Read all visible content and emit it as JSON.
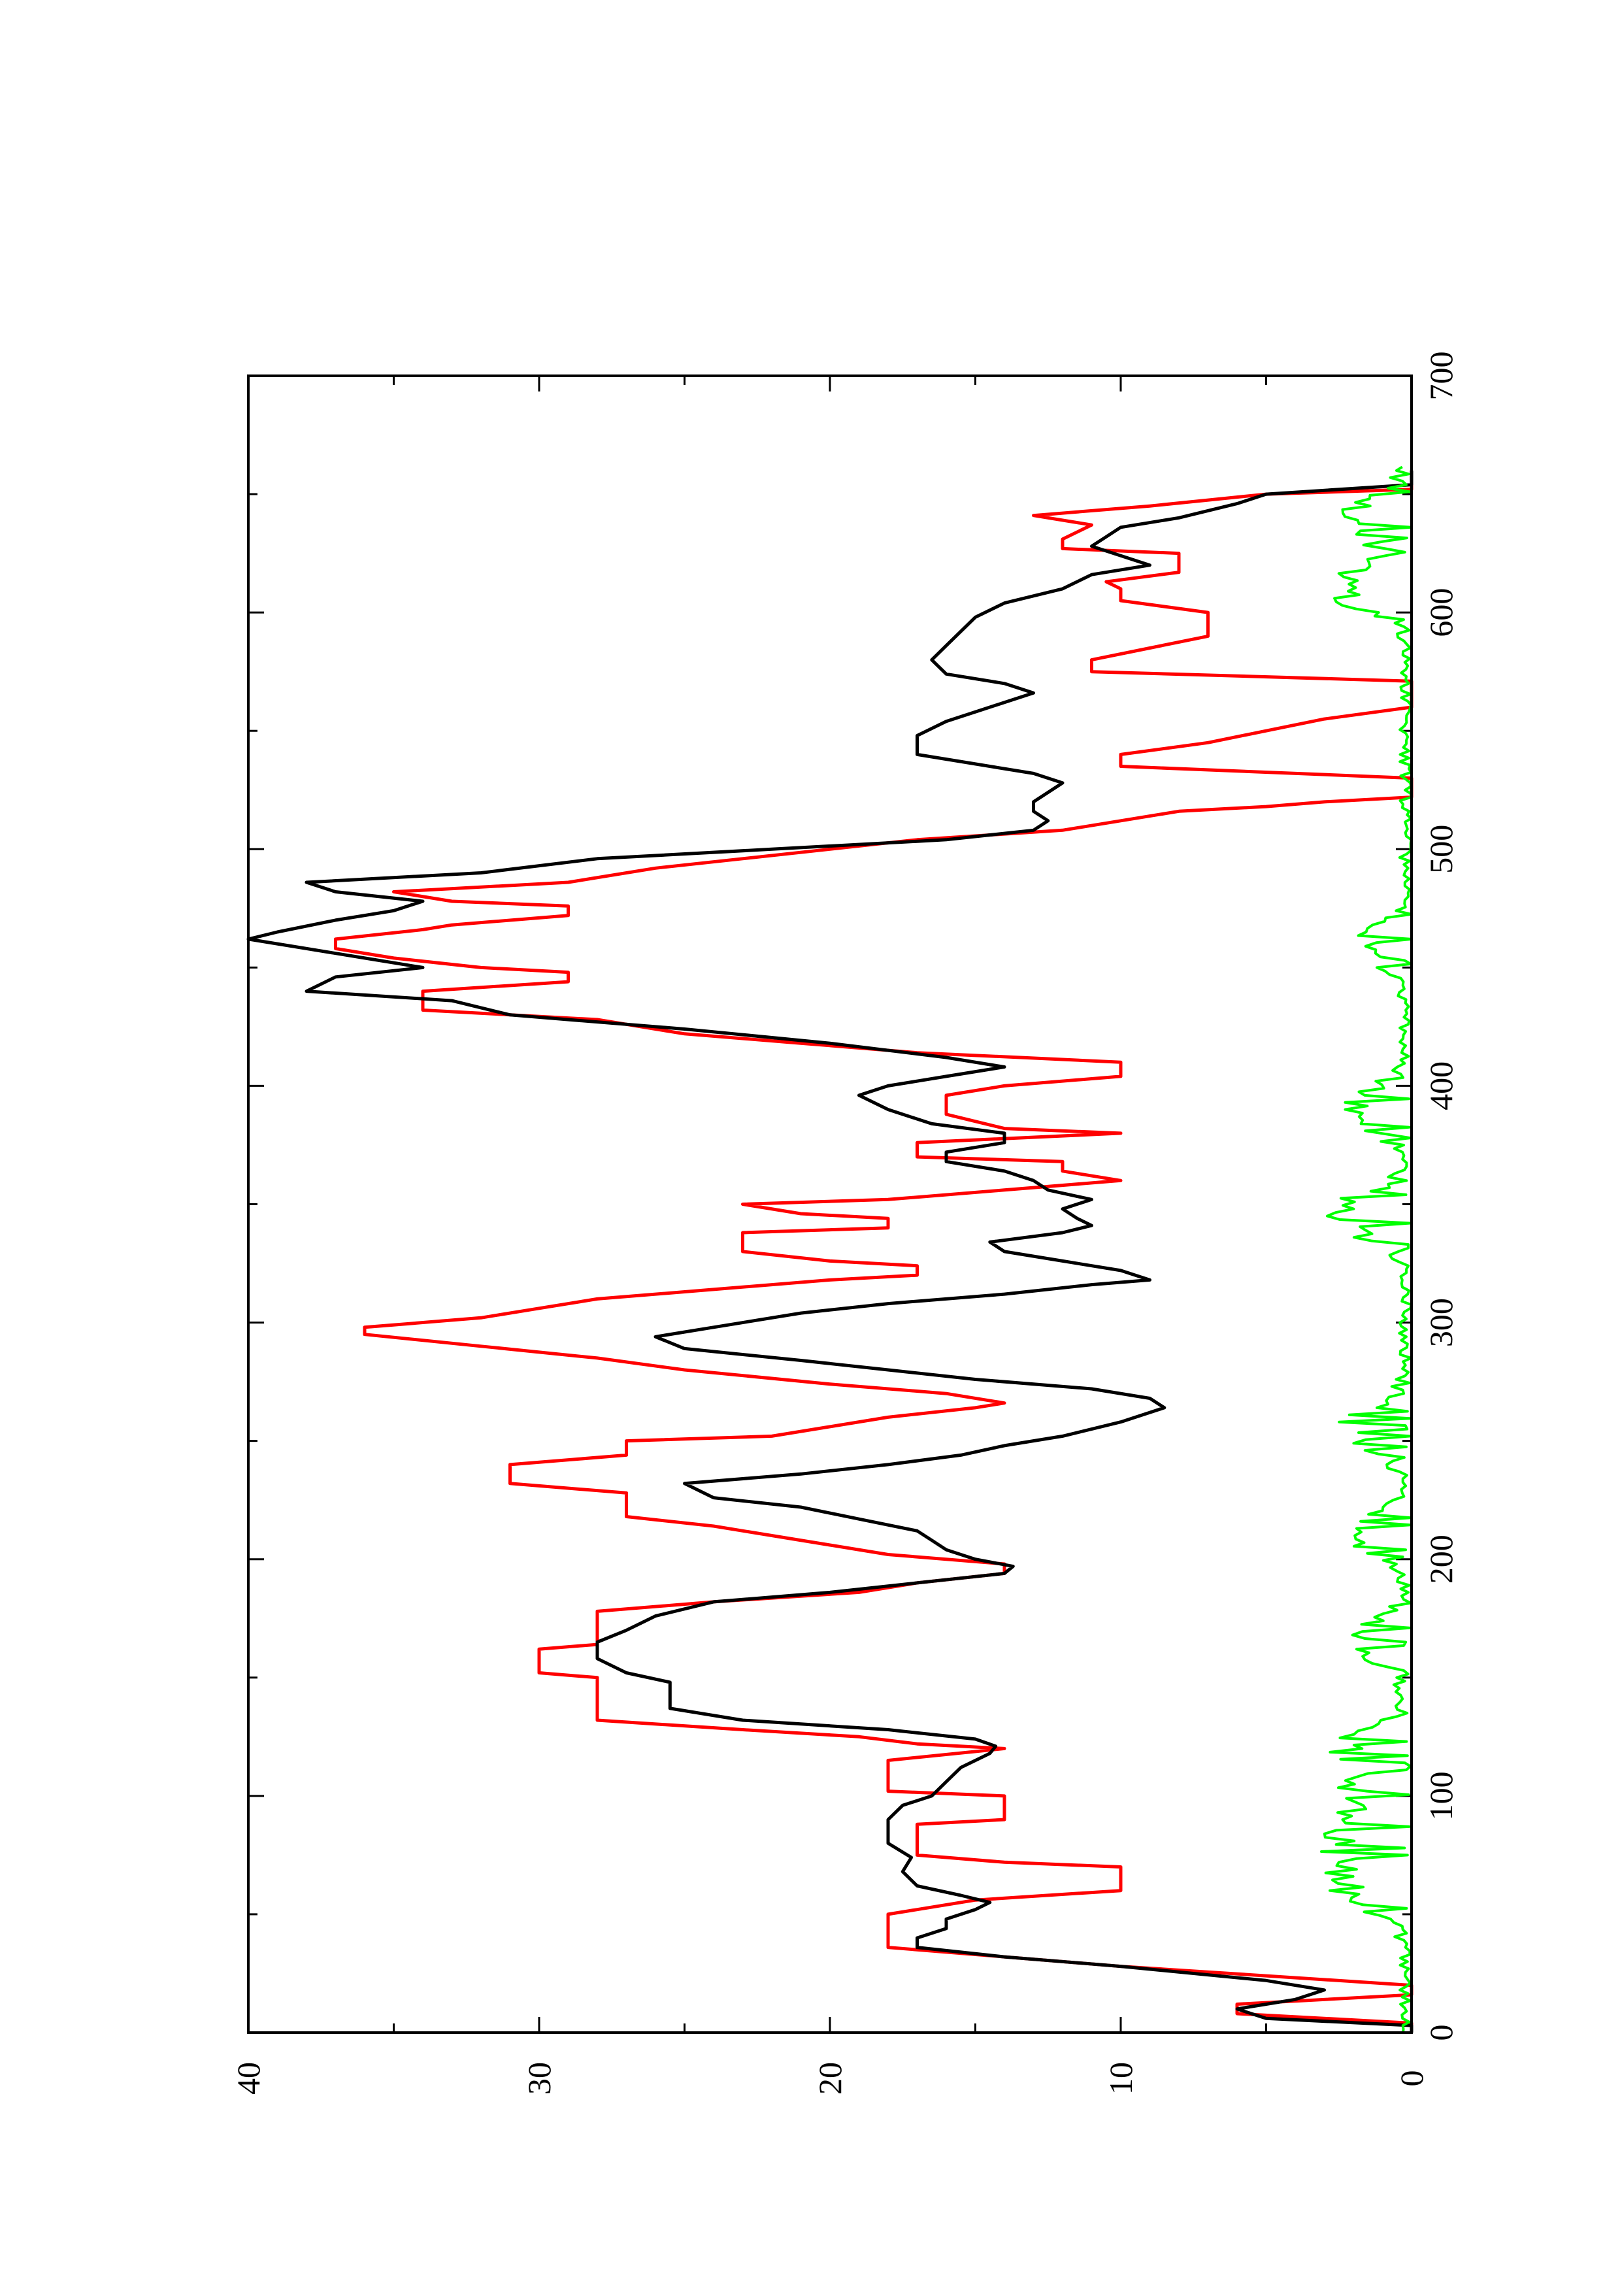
{
  "chart_data": {
    "type": "line",
    "title": "",
    "xlabel": "",
    "ylabel": "",
    "orientation": "rotated 90 degrees counter-clockwise (page landscape plot)",
    "xlim": [
      0,
      700
    ],
    "ylim": [
      0,
      40
    ],
    "x_ticks": [
      0,
      100,
      200,
      300,
      400,
      500,
      600,
      700
    ],
    "x_tick_labels": [
      "0",
      "100",
      "200",
      "300",
      "400",
      "500",
      "600",
      "700"
    ],
    "x_minor_ticks": [
      50,
      150,
      250,
      350,
      450,
      550,
      650
    ],
    "y_ticks": [
      0,
      10,
      20,
      30,
      40
    ],
    "y_tick_labels": [
      "0",
      "10",
      "20",
      "30",
      "40"
    ],
    "y_minor_ticks": [
      5,
      15,
      25,
      35
    ],
    "grid": false,
    "legend": "none",
    "series": [
      {
        "color": "#ff0000",
        "style": "step",
        "points": [
          [
            0,
            0
          ],
          [
            4,
            0
          ],
          [
            8,
            6
          ],
          [
            12,
            6
          ],
          [
            16,
            0
          ],
          [
            20,
            0
          ],
          [
            24,
            5
          ],
          [
            28,
            10
          ],
          [
            32,
            14
          ],
          [
            36,
            18
          ],
          [
            50,
            18
          ],
          [
            56,
            15
          ],
          [
            60,
            10
          ],
          [
            70,
            10
          ],
          [
            72,
            14
          ],
          [
            75,
            17
          ],
          [
            88,
            17
          ],
          [
            90,
            14
          ],
          [
            100,
            14
          ],
          [
            102,
            18
          ],
          [
            115,
            18
          ],
          [
            120,
            14
          ],
          [
            122,
            17
          ],
          [
            125,
            19
          ],
          [
            128,
            23
          ],
          [
            132,
            28
          ],
          [
            150,
            28
          ],
          [
            152,
            30
          ],
          [
            162,
            30
          ],
          [
            164,
            28
          ],
          [
            178,
            28
          ],
          [
            182,
            24
          ],
          [
            186,
            19
          ],
          [
            190,
            17
          ],
          [
            194,
            14
          ],
          [
            198,
            14
          ],
          [
            202,
            18
          ],
          [
            206,
            20
          ],
          [
            210,
            22
          ],
          [
            214,
            24
          ],
          [
            218,
            27
          ],
          [
            228,
            27
          ],
          [
            232,
            31
          ],
          [
            240,
            31
          ],
          [
            244,
            27
          ],
          [
            250,
            27
          ],
          [
            252,
            22
          ],
          [
            256,
            20
          ],
          [
            260,
            18
          ],
          [
            264,
            15
          ],
          [
            266,
            14
          ],
          [
            270,
            16
          ],
          [
            274,
            20
          ],
          [
            280,
            25
          ],
          [
            285,
            28
          ],
          [
            290,
            32
          ],
          [
            295,
            36
          ],
          [
            298,
            36
          ],
          [
            302,
            32
          ],
          [
            306,
            30
          ],
          [
            310,
            28
          ],
          [
            314,
            24
          ],
          [
            318,
            20
          ],
          [
            320,
            17
          ],
          [
            324,
            17
          ],
          [
            326,
            20
          ],
          [
            330,
            23
          ],
          [
            338,
            23
          ],
          [
            340,
            18
          ],
          [
            344,
            18
          ],
          [
            346,
            21
          ],
          [
            350,
            23
          ],
          [
            352,
            18
          ],
          [
            356,
            14
          ],
          [
            360,
            10
          ],
          [
            364,
            12
          ],
          [
            368,
            12
          ],
          [
            370,
            17
          ],
          [
            376,
            17
          ],
          [
            380,
            10
          ],
          [
            382,
            14
          ],
          [
            388,
            16
          ],
          [
            396,
            16
          ],
          [
            400,
            14
          ],
          [
            404,
            10
          ],
          [
            410,
            10
          ],
          [
            414,
            17
          ],
          [
            418,
            21
          ],
          [
            422,
            25
          ],
          [
            428,
            28
          ],
          [
            432,
            34
          ],
          [
            440,
            34
          ],
          [
            444,
            29
          ],
          [
            448,
            29
          ],
          [
            450,
            32
          ],
          [
            454,
            35
          ],
          [
            458,
            37
          ],
          [
            462,
            37
          ],
          [
            466,
            34
          ],
          [
            468,
            33
          ],
          [
            472,
            29
          ],
          [
            476,
            29
          ],
          [
            478,
            33
          ],
          [
            482,
            35
          ],
          [
            486,
            29
          ],
          [
            492,
            26
          ],
          [
            496,
            23
          ],
          [
            500,
            20
          ],
          [
            504,
            17
          ],
          [
            508,
            12
          ],
          [
            512,
            10
          ],
          [
            516,
            8
          ],
          [
            518,
            5
          ],
          [
            520,
            3
          ],
          [
            522,
            0
          ],
          [
            530,
            0
          ],
          [
            535,
            10
          ],
          [
            540,
            10
          ],
          [
            545,
            7
          ],
          [
            550,
            5
          ],
          [
            555,
            3
          ],
          [
            560,
            0
          ],
          [
            571,
            0
          ],
          [
            575,
            11
          ],
          [
            580,
            11
          ],
          [
            585,
            9
          ],
          [
            590,
            7
          ],
          [
            600,
            7
          ],
          [
            605,
            10
          ],
          [
            610,
            10
          ],
          [
            613,
            10.5
          ],
          [
            617,
            8
          ],
          [
            625,
            8
          ],
          [
            627,
            12
          ],
          [
            631,
            12
          ],
          [
            637,
            11
          ],
          [
            641,
            13
          ],
          [
            645,
            9
          ],
          [
            650,
            5
          ],
          [
            652,
            0
          ],
          [
            660,
            0
          ]
        ]
      },
      {
        "color": "#000000",
        "style": "line",
        "points": [
          [
            0,
            0
          ],
          [
            3,
            0
          ],
          [
            6,
            5
          ],
          [
            10,
            6
          ],
          [
            14,
            4
          ],
          [
            18,
            3
          ],
          [
            22,
            5
          ],
          [
            28,
            10
          ],
          [
            32,
            14
          ],
          [
            36,
            17
          ],
          [
            40,
            17
          ],
          [
            44,
            16
          ],
          [
            48,
            16
          ],
          [
            52,
            15
          ],
          [
            55,
            14.5
          ],
          [
            58,
            15.5
          ],
          [
            62,
            17
          ],
          [
            68,
            17.5
          ],
          [
            74,
            17.2
          ],
          [
            80,
            18
          ],
          [
            90,
            18
          ],
          [
            96,
            17.5
          ],
          [
            100,
            16.5
          ],
          [
            106,
            16
          ],
          [
            112,
            15.5
          ],
          [
            118,
            14.5
          ],
          [
            121,
            14.3
          ],
          [
            124,
            15
          ],
          [
            128,
            18
          ],
          [
            132,
            23
          ],
          [
            137,
            25.5
          ],
          [
            148,
            25.5
          ],
          [
            152,
            27
          ],
          [
            158,
            28
          ],
          [
            165,
            28
          ],
          [
            170,
            27
          ],
          [
            176,
            26
          ],
          [
            182,
            24
          ],
          [
            186,
            20
          ],
          [
            190,
            17
          ],
          [
            194,
            14
          ],
          [
            197,
            13.7
          ],
          [
            200,
            15
          ],
          [
            204,
            16
          ],
          [
            208,
            16.5
          ],
          [
            212,
            17
          ],
          [
            217,
            19
          ],
          [
            222,
            21
          ],
          [
            226,
            24
          ],
          [
            232,
            25
          ],
          [
            236,
            21
          ],
          [
            240,
            18
          ],
          [
            244,
            15.5
          ],
          [
            248,
            14
          ],
          [
            252,
            12
          ],
          [
            258,
            10
          ],
          [
            264,
            8.5
          ],
          [
            268,
            9
          ],
          [
            272,
            11
          ],
          [
            276,
            15
          ],
          [
            280,
            18
          ],
          [
            284,
            21
          ],
          [
            289,
            25
          ],
          [
            294,
            26
          ],
          [
            298,
            24
          ],
          [
            304,
            21
          ],
          [
            308,
            18
          ],
          [
            312,
            14
          ],
          [
            316,
            11
          ],
          [
            318,
            9
          ],
          [
            322,
            10
          ],
          [
            326,
            12
          ],
          [
            330,
            14
          ],
          [
            334,
            14.5
          ],
          [
            338,
            12
          ],
          [
            341,
            11
          ],
          [
            344,
            11.5
          ],
          [
            348,
            12
          ],
          [
            352,
            11
          ],
          [
            356,
            12.5
          ],
          [
            360,
            13
          ],
          [
            364,
            14
          ],
          [
            368,
            16
          ],
          [
            372,
            16
          ],
          [
            376,
            14
          ],
          [
            380,
            14
          ],
          [
            384,
            16.5
          ],
          [
            390,
            18
          ],
          [
            396,
            19
          ],
          [
            400,
            18
          ],
          [
            404,
            16
          ],
          [
            408,
            14
          ],
          [
            412,
            16
          ],
          [
            418,
            20
          ],
          [
            424,
            25
          ],
          [
            430,
            31
          ],
          [
            436,
            33
          ],
          [
            440,
            38
          ],
          [
            446,
            37
          ],
          [
            450,
            34
          ],
          [
            454,
            36
          ],
          [
            458,
            38
          ],
          [
            462,
            40
          ],
          [
            465,
            39
          ],
          [
            470,
            37
          ],
          [
            474,
            35
          ],
          [
            478,
            34
          ],
          [
            482,
            37
          ],
          [
            486,
            38
          ],
          [
            490,
            32
          ],
          [
            496,
            28
          ],
          [
            500,
            22
          ],
          [
            504,
            16
          ],
          [
            508,
            13
          ],
          [
            512,
            12.5
          ],
          [
            516,
            13
          ],
          [
            520,
            13
          ],
          [
            524,
            12.5
          ],
          [
            528,
            12
          ],
          [
            532,
            13
          ],
          [
            536,
            15
          ],
          [
            540,
            17
          ],
          [
            548,
            17
          ],
          [
            554,
            16
          ],
          [
            558,
            15
          ],
          [
            562,
            14
          ],
          [
            566,
            13
          ],
          [
            570,
            14
          ],
          [
            574,
            16
          ],
          [
            580,
            16.5
          ],
          [
            586,
            16
          ],
          [
            592,
            15.5
          ],
          [
            598,
            15
          ],
          [
            604,
            14
          ],
          [
            610,
            12
          ],
          [
            616,
            11
          ],
          [
            620,
            9
          ],
          [
            624,
            10
          ],
          [
            628,
            11
          ],
          [
            632,
            10.5
          ],
          [
            636,
            10
          ],
          [
            640,
            8
          ],
          [
            646,
            6
          ],
          [
            650,
            5
          ],
          [
            654,
            0
          ],
          [
            660,
            0
          ]
        ]
      },
      {
        "color": "#00ff00",
        "style": "noisy line",
        "points": []
      }
    ]
  }
}
